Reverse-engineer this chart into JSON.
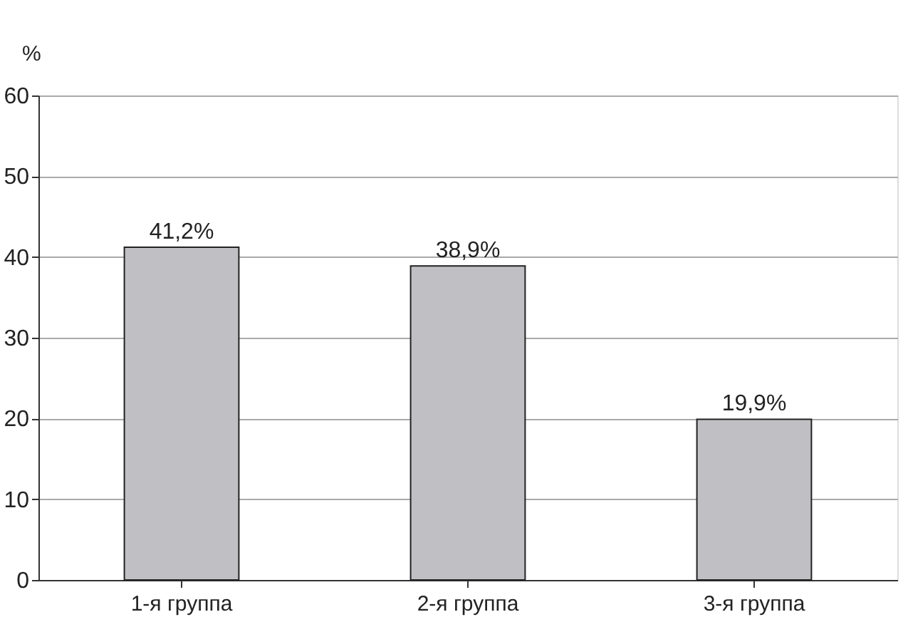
{
  "chart_data": {
    "type": "bar",
    "ylabel": "%",
    "categories": [
      "1-я группа",
      "2-я группа",
      "3-я группа"
    ],
    "values": [
      41.2,
      38.9,
      19.9
    ],
    "value_labels": [
      "41,2%",
      "38,9%",
      "19,9%"
    ],
    "color": "#c0c0c4",
    "ylim": [
      0,
      60
    ],
    "yticks": [
      0,
      10,
      20,
      30,
      40,
      50,
      60
    ],
    "grid": "y"
  }
}
